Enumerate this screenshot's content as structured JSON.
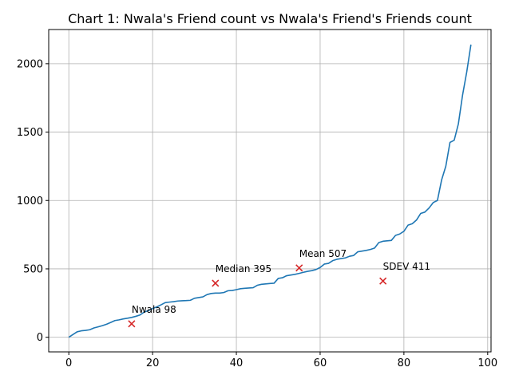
{
  "chart_data": {
    "type": "line",
    "title": "Chart 1: Nwala's Friend count vs Nwala's Friend's Friends count",
    "xlabel": "",
    "ylabel": "",
    "xlim": [
      -4.8,
      100.8
    ],
    "ylim": [
      -107,
      2250
    ],
    "xticks": [
      0,
      20,
      40,
      60,
      80,
      100
    ],
    "yticks": [
      0,
      500,
      1000,
      1500,
      2000
    ],
    "grid": true,
    "line_color": "#1f77b4",
    "marker_color": "#d62728",
    "series": [
      {
        "values": [
          0,
          20,
          40,
          47,
          50,
          55,
          68,
          76,
          85,
          95,
          108,
          122,
          127,
          134,
          139,
          145,
          153,
          163,
          184,
          195,
          210,
          222,
          237,
          253,
          257,
          260,
          265,
          267,
          268,
          270,
          285,
          290,
          295,
          312,
          320,
          323,
          323,
          327,
          340,
          342,
          348,
          355,
          358,
          360,
          362,
          380,
          387,
          390,
          393,
          395,
          430,
          435,
          450,
          455,
          460,
          467,
          475,
          482,
          487,
          495,
          510,
          535,
          540,
          560,
          570,
          575,
          580,
          592,
          598,
          625,
          630,
          635,
          642,
          652,
          692,
          702,
          705,
          708,
          745,
          755,
          775,
          820,
          830,
          857,
          905,
          915,
          945,
          985,
          1000,
          1150,
          1250,
          1425,
          1440,
          1560,
          1770,
          1940,
          2140
        ]
      }
    ],
    "annotations": [
      {
        "x": 15,
        "y": 98,
        "label": "Nwala 98"
      },
      {
        "x": 35,
        "y": 395,
        "label": "Median 395"
      },
      {
        "x": 55,
        "y": 507,
        "label": "Mean 507"
      },
      {
        "x": 75,
        "y": 411,
        "label": "SDEV 411"
      }
    ]
  }
}
